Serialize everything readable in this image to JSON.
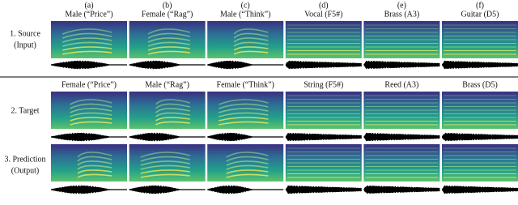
{
  "columns": [
    {
      "letter": "(a)",
      "source": "Male (“Price”)",
      "target": "Female (“Price”)"
    },
    {
      "letter": "(b)",
      "source": "Female (“Rag”)",
      "target": "Male (“Rag”)"
    },
    {
      "letter": "(c)",
      "source": "Male (“Think”)",
      "target": "Female (“Think”)"
    },
    {
      "letter": "(d)",
      "source": "Vocal (F5#)",
      "target": "String (F5#)"
    },
    {
      "letter": "(e)",
      "source": "Brass (A3)",
      "target": "Reed (A3)"
    },
    {
      "letter": "(f)",
      "source": "Guitar (D5)",
      "target": "Brass (D5)"
    }
  ],
  "rows": [
    {
      "label": "1. Source",
      "sublabel": "(Input)"
    },
    {
      "label": "2. Target"
    },
    {
      "label": "3. Prediction",
      "sublabel": "(Output)"
    }
  ]
}
